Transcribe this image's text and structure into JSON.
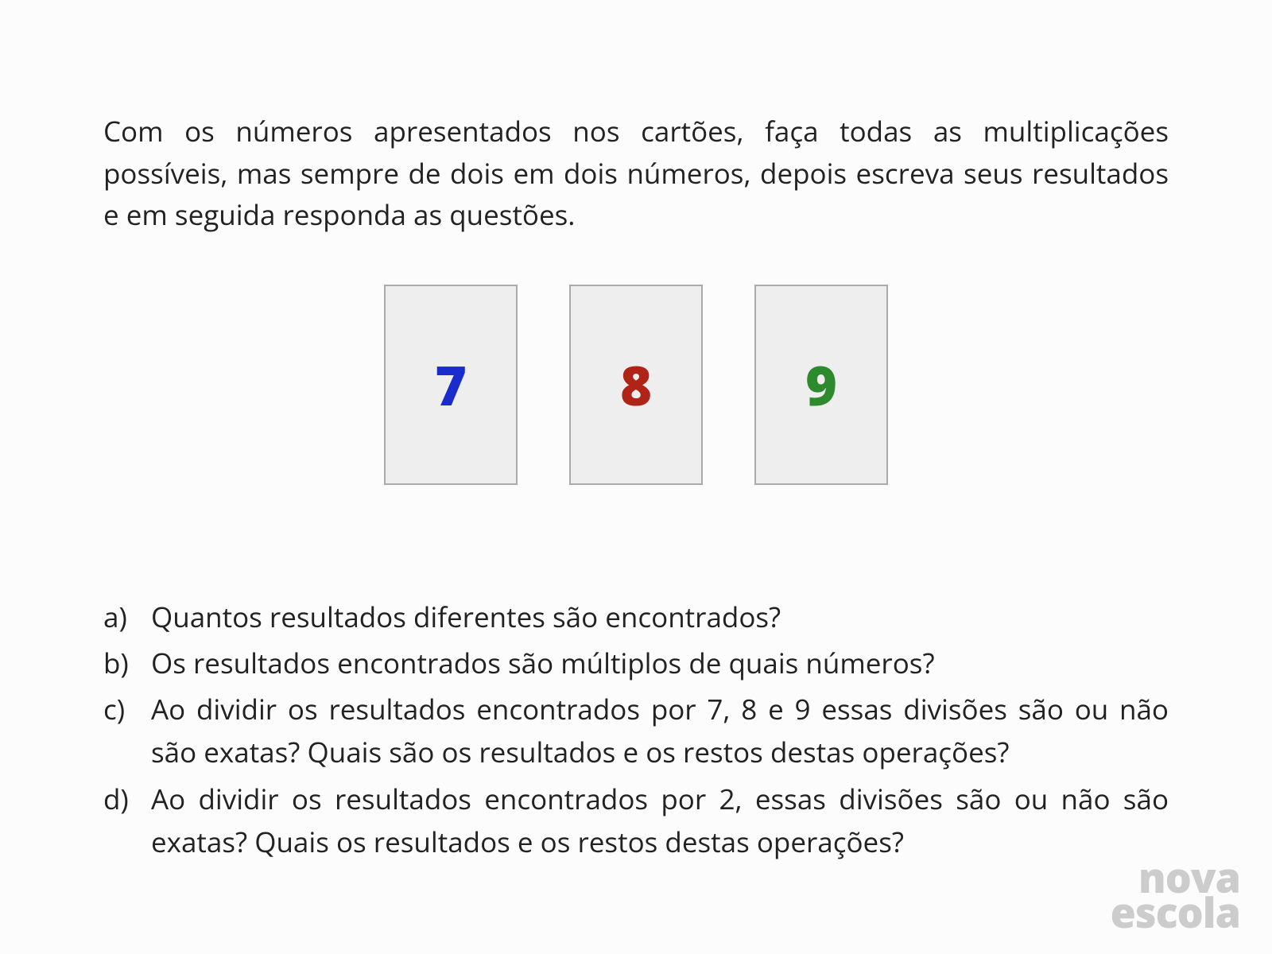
{
  "intro": "Com os números apresentados nos cartões, faça todas as multiplicações possíveis, mas sempre de dois em dois números, depois escreva seus resultados e em seguida responda as questões.",
  "cards": [
    {
      "value": "7",
      "color": "#1a2ccc"
    },
    {
      "value": "8",
      "color": "#b02418"
    },
    {
      "value": "9",
      "color": "#2d8a2d"
    }
  ],
  "questions": [
    {
      "label": "a)",
      "text": "Quantos resultados diferentes são encontrados?"
    },
    {
      "label": "b)",
      "text": "Os resultados encontrados são múltiplos de quais números?"
    },
    {
      "label": "c)",
      "text": "Ao dividir os resultados encontrados por 7, 8 e 9 essas divisões são ou não são exatas? Quais são os resultados e os restos destas operações?"
    },
    {
      "label": "d)",
      "text": "Ao dividir os resultados encontrados por 2, essas divisões são ou não são exatas? Quais os resultados e os restos destas operações?"
    }
  ],
  "logo": {
    "line1": "nova",
    "line2": "escola",
    "color": "#cccccc"
  },
  "styles": {
    "background_color": "#fcfcfc",
    "text_color": "#222222",
    "card_bg": "#eeeeee",
    "card_border": "#aaaaaa",
    "body_fontsize": 35,
    "card_number_fontsize": 68,
    "logo_fontsize": 52
  }
}
